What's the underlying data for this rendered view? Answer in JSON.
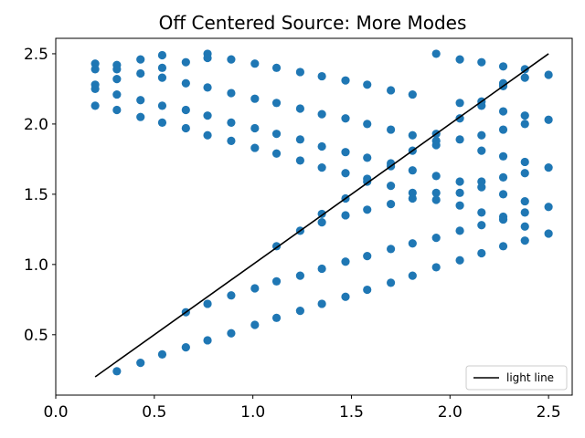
{
  "chart_data": {
    "type": "scatter",
    "title": "Off Centered Source: More Modes",
    "xlabel": "",
    "ylabel": "",
    "xlim": [
      0.0,
      2.62
    ],
    "ylim": [
      0.07,
      2.61
    ],
    "xticks": [
      "0.0",
      "0.5",
      "1.0",
      "1.5",
      "2.0",
      "2.5"
    ],
    "yticks": [
      "0.5",
      "1.0",
      "1.5",
      "2.0",
      "2.5"
    ],
    "grid": false,
    "legend": {
      "position": "lower-right",
      "entries": [
        "light line"
      ]
    },
    "series": [
      {
        "type": "scatter",
        "color": "#1f77b4",
        "points": [
          [
            0.2,
            2.43
          ],
          [
            0.2,
            2.39
          ],
          [
            0.2,
            2.28
          ],
          [
            0.2,
            2.25
          ],
          [
            0.2,
            2.13
          ],
          [
            0.31,
            2.42
          ],
          [
            0.31,
            2.39
          ],
          [
            0.31,
            2.32
          ],
          [
            0.31,
            2.21
          ],
          [
            0.31,
            2.1
          ],
          [
            0.43,
            2.46
          ],
          [
            0.43,
            2.36
          ],
          [
            0.43,
            2.17
          ],
          [
            0.43,
            2.05
          ],
          [
            0.54,
            2.49
          ],
          [
            0.54,
            2.4
          ],
          [
            0.54,
            2.33
          ],
          [
            0.54,
            2.13
          ],
          [
            0.54,
            2.01
          ],
          [
            0.66,
            2.44
          ],
          [
            0.66,
            2.29
          ],
          [
            0.66,
            2.1
          ],
          [
            0.66,
            1.97
          ],
          [
            0.77,
            2.5
          ],
          [
            0.77,
            2.47
          ],
          [
            0.77,
            2.26
          ],
          [
            0.77,
            2.06
          ],
          [
            0.77,
            1.92
          ],
          [
            0.89,
            2.46
          ],
          [
            0.89,
            2.22
          ],
          [
            0.89,
            2.01
          ],
          [
            0.89,
            1.88
          ],
          [
            1.01,
            2.43
          ],
          [
            1.01,
            2.18
          ],
          [
            1.01,
            1.97
          ],
          [
            1.01,
            1.83
          ],
          [
            1.12,
            2.4
          ],
          [
            1.12,
            2.15
          ],
          [
            1.12,
            1.93
          ],
          [
            1.12,
            1.79
          ],
          [
            1.24,
            2.37
          ],
          [
            1.24,
            2.11
          ],
          [
            1.24,
            1.89
          ],
          [
            1.24,
            1.74
          ],
          [
            1.35,
            2.34
          ],
          [
            1.35,
            2.07
          ],
          [
            1.35,
            1.84
          ],
          [
            1.35,
            1.69
          ],
          [
            1.47,
            2.31
          ],
          [
            1.47,
            2.04
          ],
          [
            1.47,
            1.8
          ],
          [
            1.47,
            1.65
          ],
          [
            1.58,
            2.28
          ],
          [
            1.58,
            2.0
          ],
          [
            1.58,
            1.76
          ],
          [
            1.58,
            1.61
          ],
          [
            1.7,
            2.24
          ],
          [
            1.7,
            1.96
          ],
          [
            1.7,
            1.72
          ],
          [
            1.7,
            1.56
          ],
          [
            1.81,
            2.21
          ],
          [
            1.81,
            1.92
          ],
          [
            1.81,
            1.67
          ],
          [
            1.81,
            1.51
          ],
          [
            1.93,
            2.5
          ],
          [
            1.93,
            1.93
          ],
          [
            1.93,
            1.88
          ],
          [
            1.93,
            1.63
          ],
          [
            1.93,
            1.51
          ],
          [
            2.05,
            2.46
          ],
          [
            2.05,
            2.15
          ],
          [
            2.05,
            1.89
          ],
          [
            2.05,
            1.59
          ],
          [
            2.05,
            1.51
          ],
          [
            2.16,
            2.44
          ],
          [
            2.16,
            2.16
          ],
          [
            2.16,
            2.13
          ],
          [
            2.16,
            1.92
          ],
          [
            2.16,
            1.81
          ],
          [
            2.16,
            1.59
          ],
          [
            2.16,
            1.55
          ],
          [
            2.27,
            2.41
          ],
          [
            2.27,
            2.29
          ],
          [
            2.27,
            2.27
          ],
          [
            2.27,
            2.09
          ],
          [
            2.27,
            1.96
          ],
          [
            2.27,
            1.77
          ],
          [
            2.27,
            1.62
          ],
          [
            2.27,
            1.5
          ],
          [
            2.38,
            2.39
          ],
          [
            2.38,
            2.33
          ],
          [
            2.38,
            2.06
          ],
          [
            2.38,
            2.0
          ],
          [
            2.38,
            1.73
          ],
          [
            2.38,
            1.65
          ],
          [
            2.38,
            1.45
          ],
          [
            2.5,
            2.35
          ],
          [
            2.5,
            2.03
          ],
          [
            2.5,
            1.69
          ],
          [
            2.5,
            1.41
          ],
          [
            0.31,
            0.24
          ],
          [
            0.43,
            0.3
          ],
          [
            0.54,
            0.36
          ],
          [
            0.66,
            0.41
          ],
          [
            0.77,
            0.46
          ],
          [
            0.89,
            0.51
          ],
          [
            1.01,
            0.57
          ],
          [
            1.12,
            0.62
          ],
          [
            1.24,
            0.67
          ],
          [
            1.35,
            0.72
          ],
          [
            1.47,
            0.77
          ],
          [
            1.58,
            0.82
          ],
          [
            1.7,
            0.87
          ],
          [
            1.81,
            0.92
          ],
          [
            1.93,
            0.98
          ],
          [
            2.05,
            1.03
          ],
          [
            2.16,
            1.08
          ],
          [
            2.27,
            1.13
          ],
          [
            2.38,
            1.17
          ],
          [
            2.5,
            1.22
          ],
          [
            0.66,
            0.66
          ],
          [
            0.77,
            0.72
          ],
          [
            0.89,
            0.78
          ],
          [
            1.01,
            0.83
          ],
          [
            1.12,
            0.88
          ],
          [
            1.24,
            0.92
          ],
          [
            1.35,
            0.97
          ],
          [
            1.47,
            1.02
          ],
          [
            1.58,
            1.06
          ],
          [
            1.7,
            1.11
          ],
          [
            1.81,
            1.15
          ],
          [
            1.93,
            1.19
          ],
          [
            2.05,
            1.24
          ],
          [
            2.16,
            1.28
          ],
          [
            2.27,
            1.32
          ],
          [
            2.38,
            1.37
          ],
          [
            1.12,
            1.13
          ],
          [
            1.24,
            1.24
          ],
          [
            1.35,
            1.3
          ],
          [
            1.35,
            1.36
          ],
          [
            1.47,
            1.35
          ],
          [
            1.47,
            1.47
          ],
          [
            1.58,
            1.39
          ],
          [
            1.58,
            1.59
          ],
          [
            1.7,
            1.43
          ],
          [
            1.7,
            1.7
          ],
          [
            1.81,
            1.47
          ],
          [
            1.81,
            1.81
          ],
          [
            1.93,
            1.46
          ],
          [
            1.93,
            1.85
          ],
          [
            2.05,
            1.42
          ],
          [
            2.05,
            2.04
          ],
          [
            2.16,
            1.37
          ],
          [
            2.27,
            1.34
          ],
          [
            2.27,
            2.28
          ],
          [
            2.38,
            1.27
          ]
        ]
      },
      {
        "type": "line",
        "name": "light line",
        "color": "#000000",
        "x": [
          0.2,
          2.5
        ],
        "y": [
          0.2,
          2.5
        ]
      }
    ]
  }
}
